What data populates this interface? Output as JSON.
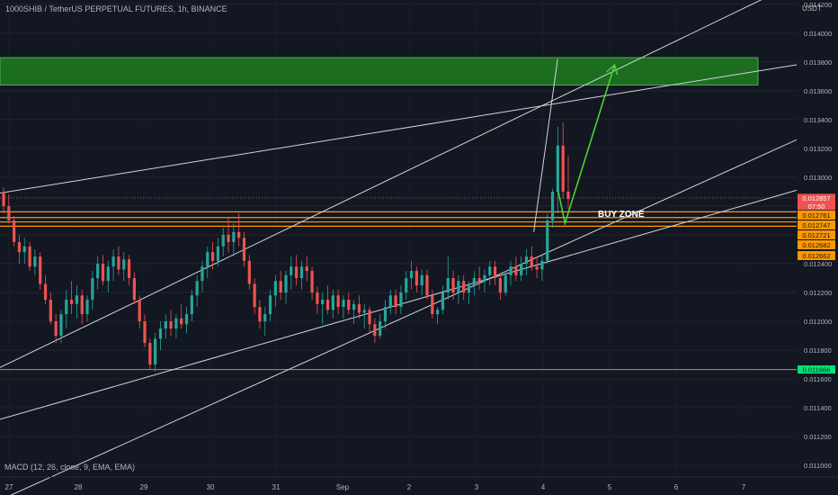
{
  "header": {
    "symbol_title": "1000SHIB / TetherUS PERPETUAL FUTURES, 1h, BINANCE",
    "currency": "USDT"
  },
  "indicator": {
    "label": "MACD (12, 26, close, 9, EMA, EMA)"
  },
  "annotation": {
    "buy_zone": "BUY ZONE"
  },
  "colors": {
    "background": "#131722",
    "up_candle": "#26a69a",
    "down_candle": "#ef5350",
    "trendline": "#d1d4dc",
    "support_line": "#4caf50",
    "target_zone": "#1e7d1e",
    "buy_zone_lines": "#ff9800",
    "arrow": "#4cd137"
  },
  "chart_data": {
    "type": "candlestick",
    "title": "1000SHIB / TetherUS PERPETUAL FUTURES, 1h, BINANCE",
    "timeframe": "1h",
    "exchange": "BINANCE",
    "ylim": [
      0.01092,
      0.01423
    ],
    "y_ticks": [
      "0.011000",
      "0.011200",
      "0.011400",
      "0.011600",
      "0.011800",
      "0.012000",
      "0.012200",
      "0.012400",
      "0.012600",
      "0.012800",
      "0.013000",
      "0.013200",
      "0.013400",
      "0.013600",
      "0.013800",
      "0.014000",
      "0.014200"
    ],
    "x_ticks": [
      "27",
      "28",
      "29",
      "30",
      "31",
      "Sep",
      "2",
      "3",
      "4",
      "5",
      "6",
      "7"
    ],
    "price_labels": {
      "last": {
        "value": "0.012857",
        "countdown": "07:50"
      },
      "buy_zone_levels": [
        "0.012761",
        "0.012747",
        "0.012721",
        "0.012682",
        "0.012662"
      ],
      "support": "0.011666"
    },
    "levels": {
      "target_zone": [
        0.01364,
        0.01383
      ],
      "buy_zone": [
        0.01266,
        0.01276
      ],
      "support": 0.011666,
      "last_price": 0.012857
    },
    "candles_ohlc": [
      [
        0.0129,
        0.01293,
        0.01275,
        0.0128
      ],
      [
        0.0128,
        0.01288,
        0.01268,
        0.0127
      ],
      [
        0.0127,
        0.01273,
        0.01252,
        0.01255
      ],
      [
        0.01255,
        0.0126,
        0.0124,
        0.01248
      ],
      [
        0.01248,
        0.01258,
        0.0124,
        0.01252
      ],
      [
        0.01252,
        0.01255,
        0.01235,
        0.01238
      ],
      [
        0.01238,
        0.0125,
        0.01232,
        0.01245
      ],
      [
        0.01245,
        0.01248,
        0.01222,
        0.01226
      ],
      [
        0.01226,
        0.01232,
        0.01212,
        0.01215
      ],
      [
        0.01215,
        0.0122,
        0.01198,
        0.012
      ],
      [
        0.012,
        0.01205,
        0.01185,
        0.0119
      ],
      [
        0.0119,
        0.01208,
        0.01185,
        0.01205
      ],
      [
        0.01205,
        0.01222,
        0.01195,
        0.01215
      ],
      [
        0.01215,
        0.01228,
        0.01205,
        0.01212
      ],
      [
        0.01212,
        0.01225,
        0.01202,
        0.01218
      ],
      [
        0.01218,
        0.01222,
        0.01198,
        0.01205
      ],
      [
        0.01205,
        0.01218,
        0.012,
        0.01215
      ],
      [
        0.01215,
        0.01235,
        0.01208,
        0.0123
      ],
      [
        0.0123,
        0.01245,
        0.01222,
        0.0124
      ],
      [
        0.0124,
        0.01246,
        0.01225,
        0.01228
      ],
      [
        0.01228,
        0.01242,
        0.0122,
        0.01238
      ],
      [
        0.01238,
        0.0125,
        0.01228,
        0.01245
      ],
      [
        0.01245,
        0.01252,
        0.01232,
        0.01236
      ],
      [
        0.01236,
        0.01248,
        0.01228,
        0.01243
      ],
      [
        0.01243,
        0.01246,
        0.01225,
        0.0123
      ],
      [
        0.0123,
        0.01234,
        0.01212,
        0.01215
      ],
      [
        0.01215,
        0.01218,
        0.01195,
        0.012
      ],
      [
        0.012,
        0.01205,
        0.01182,
        0.01185
      ],
      [
        0.01185,
        0.01188,
        0.01166,
        0.0117
      ],
      [
        0.0117,
        0.01192,
        0.01165,
        0.01188
      ],
      [
        0.01188,
        0.012,
        0.0118,
        0.01195
      ],
      [
        0.01195,
        0.01205,
        0.01188,
        0.012
      ],
      [
        0.012,
        0.01208,
        0.0119,
        0.01195
      ],
      [
        0.01195,
        0.01205,
        0.01188,
        0.01202
      ],
      [
        0.01202,
        0.01212,
        0.01195,
        0.01198
      ],
      [
        0.01198,
        0.0121,
        0.01192,
        0.01205
      ],
      [
        0.01205,
        0.01222,
        0.012,
        0.01218
      ],
      [
        0.01218,
        0.01232,
        0.0121,
        0.01228
      ],
      [
        0.01228,
        0.01242,
        0.0122,
        0.01238
      ],
      [
        0.01238,
        0.01252,
        0.0123,
        0.01248
      ],
      [
        0.01248,
        0.01255,
        0.01236,
        0.01242
      ],
      [
        0.01242,
        0.01258,
        0.01238,
        0.01252
      ],
      [
        0.01252,
        0.01265,
        0.01245,
        0.0126
      ],
      [
        0.0126,
        0.01272,
        0.01248,
        0.01255
      ],
      [
        0.01255,
        0.01268,
        0.01245,
        0.01262
      ],
      [
        0.01262,
        0.01275,
        0.01252,
        0.01258
      ],
      [
        0.01258,
        0.01262,
        0.01238,
        0.01242
      ],
      [
        0.01242,
        0.01246,
        0.01222,
        0.01226
      ],
      [
        0.01226,
        0.0123,
        0.01205,
        0.0121
      ],
      [
        0.0121,
        0.01215,
        0.01195,
        0.012
      ],
      [
        0.012,
        0.0121,
        0.0119,
        0.01205
      ],
      [
        0.01205,
        0.01222,
        0.012,
        0.01218
      ],
      [
        0.01218,
        0.01232,
        0.0121,
        0.01228
      ],
      [
        0.01228,
        0.01235,
        0.01215,
        0.0122
      ],
      [
        0.0122,
        0.01235,
        0.01212,
        0.01232
      ],
      [
        0.01232,
        0.01245,
        0.01222,
        0.01238
      ],
      [
        0.01238,
        0.01246,
        0.01225,
        0.0123
      ],
      [
        0.0123,
        0.01242,
        0.01222,
        0.01238
      ],
      [
        0.01238,
        0.01245,
        0.01228,
        0.01235
      ],
      [
        0.01235,
        0.01238,
        0.01215,
        0.0122
      ],
      [
        0.0122,
        0.01224,
        0.01205,
        0.01212
      ],
      [
        0.01212,
        0.0122,
        0.01198,
        0.01215
      ],
      [
        0.01215,
        0.01225,
        0.01205,
        0.01208
      ],
      [
        0.01208,
        0.01222,
        0.01202,
        0.01218
      ],
      [
        0.01218,
        0.01222,
        0.01205,
        0.0121
      ],
      [
        0.0121,
        0.01218,
        0.01202,
        0.01215
      ],
      [
        0.01215,
        0.0122,
        0.01205,
        0.01208
      ],
      [
        0.01208,
        0.01215,
        0.01198,
        0.01212
      ],
      [
        0.01212,
        0.01218,
        0.01202,
        0.01206
      ],
      [
        0.01206,
        0.01212,
        0.01195,
        0.01208
      ],
      [
        0.01208,
        0.0121,
        0.01192,
        0.01198
      ],
      [
        0.01198,
        0.01202,
        0.01185,
        0.0119
      ],
      [
        0.0119,
        0.01205,
        0.01188,
        0.012
      ],
      [
        0.012,
        0.01215,
        0.01195,
        0.0121
      ],
      [
        0.0121,
        0.01222,
        0.01205,
        0.01218
      ],
      [
        0.01218,
        0.01222,
        0.01205,
        0.0121
      ],
      [
        0.0121,
        0.01225,
        0.01205,
        0.0122
      ],
      [
        0.0122,
        0.01235,
        0.01215,
        0.0123
      ],
      [
        0.0123,
        0.01242,
        0.01222,
        0.01235
      ],
      [
        0.01235,
        0.01238,
        0.0122,
        0.01225
      ],
      [
        0.01225,
        0.01236,
        0.01218,
        0.01232
      ],
      [
        0.01232,
        0.01236,
        0.01215,
        0.01218
      ],
      [
        0.01218,
        0.01222,
        0.01202,
        0.01205
      ],
      [
        0.01205,
        0.0121,
        0.01198,
        0.01208
      ],
      [
        0.01208,
        0.01225,
        0.01205,
        0.0122
      ],
      [
        0.0122,
        0.01245,
        0.01215,
        0.0123
      ],
      [
        0.0123,
        0.01235,
        0.01215,
        0.0122
      ],
      [
        0.0122,
        0.01232,
        0.01212,
        0.01228
      ],
      [
        0.01228,
        0.01232,
        0.01215,
        0.0122
      ],
      [
        0.0122,
        0.01228,
        0.01212,
        0.01225
      ],
      [
        0.01225,
        0.01235,
        0.01218,
        0.0123
      ],
      [
        0.0123,
        0.01238,
        0.01222,
        0.01228
      ],
      [
        0.01228,
        0.01236,
        0.0122,
        0.01232
      ],
      [
        0.01232,
        0.01242,
        0.01225,
        0.01238
      ],
      [
        0.01238,
        0.01242,
        0.01225,
        0.0123
      ],
      [
        0.0123,
        0.01232,
        0.01215,
        0.0122
      ],
      [
        0.0122,
        0.01235,
        0.01218,
        0.01232
      ],
      [
        0.01232,
        0.01242,
        0.01225,
        0.01238
      ],
      [
        0.01238,
        0.01245,
        0.01228,
        0.01232
      ],
      [
        0.01232,
        0.01245,
        0.01228,
        0.0124
      ],
      [
        0.0124,
        0.0125,
        0.01232,
        0.01245
      ],
      [
        0.01245,
        0.01252,
        0.01235,
        0.01238
      ],
      [
        0.01238,
        0.01245,
        0.0123,
        0.01236
      ],
      [
        0.01236,
        0.01246,
        0.01228,
        0.01242
      ],
      [
        0.01242,
        0.01275,
        0.0124,
        0.0127
      ],
      [
        0.0127,
        0.01292,
        0.01265,
        0.0129
      ],
      [
        0.0129,
        0.01335,
        0.01275,
        0.01322
      ],
      [
        0.01322,
        0.01338,
        0.01285,
        0.0129
      ],
      [
        0.0129,
        0.01315,
        0.01278,
        0.01285
      ]
    ],
    "trendlines": [
      {
        "from": [
          0,
          0.01168
        ],
        "to": [
          1.0,
          0.01435
        ]
      },
      {
        "from": [
          0,
          0.01289
        ],
        "to": [
          1.0,
          0.01378
        ]
      },
      {
        "from": [
          0,
          0.01132
        ],
        "to": [
          1.0,
          0.01291
        ]
      },
      {
        "from": [
          0,
          0.01076
        ],
        "to": [
          1.0,
          0.01326
        ]
      },
      {
        "from": [
          0.67,
          0.01262
        ],
        "to": [
          0.7,
          0.01382
        ]
      }
    ],
    "projection_arrow": [
      [
        0.7005,
        0.01291
      ],
      [
        0.7092,
        0.01268
      ],
      [
        0.7715,
        0.01378
      ]
    ]
  }
}
